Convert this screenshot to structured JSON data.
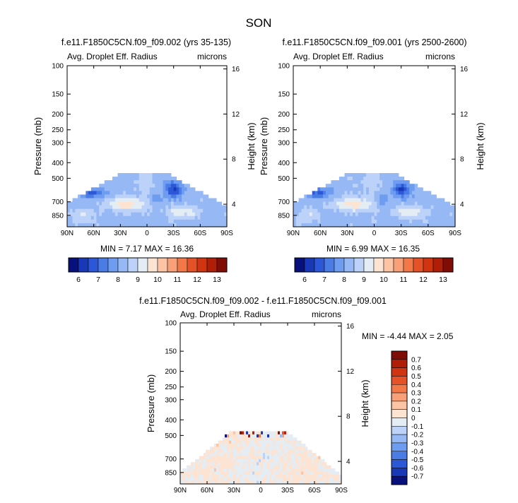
{
  "chart_data": {
    "type": "heatmap",
    "title": "SON",
    "panels": [
      {
        "id": "p1",
        "title": "f.e11.F1850C5CN.f09_f09.002 (yrs 35-135)",
        "left_label": "Avg. Droplet Eff. Radius",
        "right_label": "microns",
        "ylabel": "Pressure (mb)",
        "y2label": "Height (km)",
        "xticks": [
          "90N",
          "60N",
          "30N",
          "0",
          "30S",
          "60S",
          "90S"
        ],
        "yticks": [
          "100",
          "150",
          "200",
          "250",
          "300",
          "400",
          "500",
          "700",
          "850"
        ],
        "y2ticks": [
          "16",
          "12",
          "8",
          "4"
        ],
        "stats": "MIN =  7.17  MAX = 16.36",
        "stats_min": 7.17,
        "stats_max": 16.36
      },
      {
        "id": "p2",
        "title": "f.e11.F1850C5CN.f09_f09.001 (yrs 2500-2600)",
        "left_label": "Avg. Droplet Eff. Radius",
        "right_label": "microns",
        "ylabel": "Pressure (mb)",
        "y2label": "Height (km)",
        "xticks": [
          "90N",
          "60N",
          "30N",
          "0",
          "30S",
          "60S",
          "90S"
        ],
        "yticks": [
          "100",
          "150",
          "200",
          "250",
          "300",
          "400",
          "500",
          "700",
          "850"
        ],
        "y2ticks": [
          "16",
          "12",
          "8",
          "4"
        ],
        "stats": "MIN =  6.99  MAX = 16.35",
        "stats_min": 6.99,
        "stats_max": 16.35
      },
      {
        "id": "p3",
        "title": "f.e11.F1850C5CN.f09_f09.002 - f.e11.F1850C5CN.f09_f09.001",
        "left_label": "Avg. Droplet Eff. Radius",
        "right_label": "microns",
        "ylabel": "Pressure (mb)",
        "y2label": "Height (km)",
        "xticks": [
          "90N",
          "60N",
          "30N",
          "0",
          "30S",
          "60S",
          "90S"
        ],
        "yticks": [
          "100",
          "150",
          "200",
          "250",
          "300",
          "400",
          "500",
          "700",
          "850"
        ],
        "y2ticks": [
          "16",
          "12",
          "8",
          "4"
        ],
        "stats": "MIN =  -4.44  MAX =   2.05",
        "stats_min": -4.44,
        "stats_max": 2.05
      }
    ],
    "colorbar_abs": {
      "labels": [
        "6",
        "7",
        "8",
        "9",
        "10",
        "11",
        "12",
        "13"
      ],
      "colors": [
        "#08107c",
        "#1838b8",
        "#2c58d8",
        "#4a7ce6",
        "#6e9cf0",
        "#96b8f4",
        "#bcd2f8",
        "#e4ecf4",
        "#fde4d2",
        "#fcc4a4",
        "#f9a078",
        "#f37848",
        "#e65228",
        "#d03410",
        "#b01e08",
        "#800c06"
      ]
    },
    "colorbar_diff": {
      "labels": [
        "0.7",
        "0.6",
        "0.5",
        "0.4",
        "0.3",
        "0.2",
        "0.1",
        "0",
        "-0.1",
        "-0.2",
        "-0.3",
        "-0.4",
        "-0.5",
        "-0.6",
        "-0.7"
      ],
      "colors": [
        "#800c06",
        "#b01e08",
        "#d03410",
        "#e65228",
        "#f37848",
        "#f9a078",
        "#fcc4a4",
        "#fde4d2",
        "#e4ecf4",
        "#bcd2f8",
        "#96b8f4",
        "#6e9cf0",
        "#4a7ce6",
        "#2c58d8",
        "#1838b8",
        "#08107c"
      ]
    }
  }
}
